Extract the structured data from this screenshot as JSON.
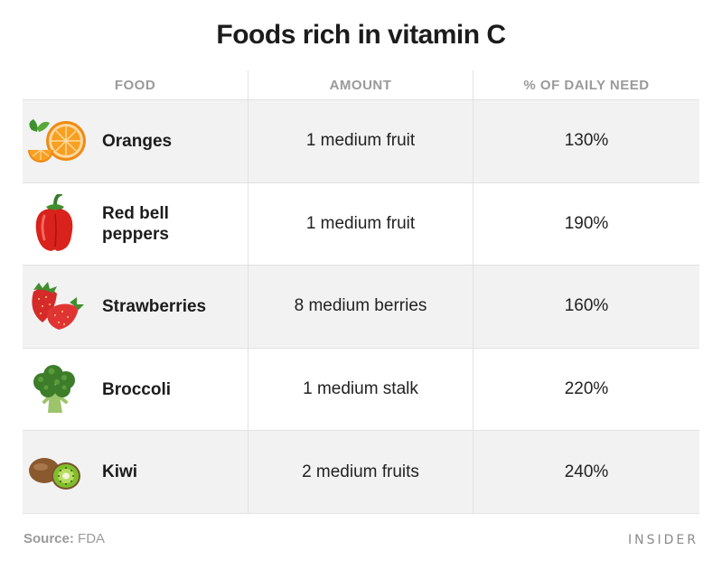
{
  "title": "Foods rich in vitamin C",
  "chart_data": {
    "type": "table",
    "columns": [
      "FOOD",
      "AMOUNT",
      "% OF DAILY NEED"
    ],
    "rows": [
      {
        "food": "Oranges",
        "amount": "1 medium fruit",
        "percent": "130%",
        "icon": "orange-icon"
      },
      {
        "food": "Red bell peppers",
        "amount": "1 medium fruit",
        "percent": "190%",
        "icon": "red-bell-pepper-icon"
      },
      {
        "food": "Strawberries",
        "amount": "8 medium berries",
        "percent": "160%",
        "icon": "strawberry-icon"
      },
      {
        "food": "Broccoli",
        "amount": "1 medium stalk",
        "percent": "220%",
        "icon": "broccoli-icon"
      },
      {
        "food": "Kiwi",
        "amount": "2 medium fruits",
        "percent": "240%",
        "icon": "kiwi-icon"
      }
    ]
  },
  "footer": {
    "source_label": "Source:",
    "source_value": "FDA",
    "brand": "INSIDER"
  },
  "colors": {
    "row_alt_bg": "#f2f2f2",
    "header_text": "#9a9a9a",
    "divider": "#e2e2e2"
  }
}
